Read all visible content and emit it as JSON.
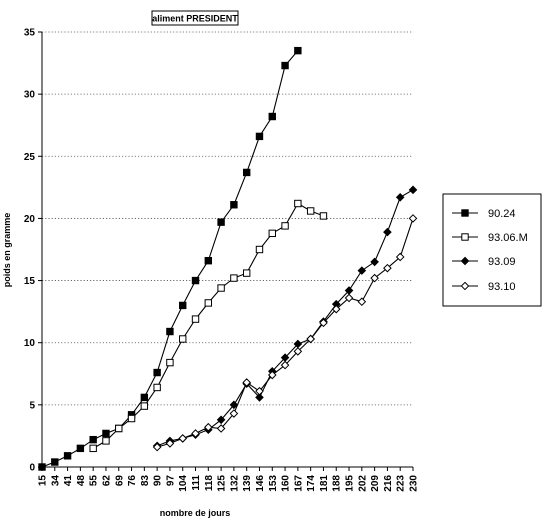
{
  "chart_data": {
    "type": "line",
    "title": "aliment PRESIDENT",
    "xlabel": "nombre de jours",
    "ylabel": "poids en gramme",
    "ylim": [
      0,
      35
    ],
    "yticks": [
      0,
      5,
      10,
      15,
      20,
      25,
      30,
      35
    ],
    "categories": [
      "15",
      "34",
      "41",
      "48",
      "55",
      "62",
      "69",
      "76",
      "83",
      "90",
      "97",
      "104",
      "111",
      "118",
      "125",
      "132",
      "139",
      "146",
      "153",
      "160",
      "167",
      "174",
      "181",
      "188",
      "195",
      "202",
      "209",
      "216",
      "223",
      "230"
    ],
    "grid": "horizontal dotted",
    "legend_position": "right",
    "series": [
      {
        "name": "90.24",
        "marker": "filled-square",
        "points": [
          {
            "x": 15,
            "y": 0.0
          },
          {
            "x": 34,
            "y": 0.4
          },
          {
            "x": 41,
            "y": 0.9
          },
          {
            "x": 48,
            "y": 1.5
          },
          {
            "x": 55,
            "y": 2.2
          },
          {
            "x": 62,
            "y": 2.7
          },
          {
            "x": 69,
            "y": 3.1
          },
          {
            "x": 76,
            "y": 4.2
          },
          {
            "x": 83,
            "y": 5.6
          },
          {
            "x": 90,
            "y": 7.6
          },
          {
            "x": 97,
            "y": 10.9
          },
          {
            "x": 104,
            "y": 13.0
          },
          {
            "x": 111,
            "y": 15.0
          },
          {
            "x": 118,
            "y": 16.6
          },
          {
            "x": 125,
            "y": 19.7
          },
          {
            "x": 132,
            "y": 21.1
          },
          {
            "x": 139,
            "y": 23.7
          },
          {
            "x": 146,
            "y": 26.6
          },
          {
            "x": 153,
            "y": 28.2
          },
          {
            "x": 160,
            "y": 32.3
          },
          {
            "x": 167,
            "y": 33.5
          }
        ]
      },
      {
        "name": "93.06.M",
        "marker": "open-square",
        "points": [
          {
            "x": 55,
            "y": 1.5
          },
          {
            "x": 62,
            "y": 2.1
          },
          {
            "x": 69,
            "y": 3.1
          },
          {
            "x": 76,
            "y": 3.9
          },
          {
            "x": 83,
            "y": 4.9
          },
          {
            "x": 90,
            "y": 6.4
          },
          {
            "x": 97,
            "y": 8.4
          },
          {
            "x": 104,
            "y": 10.3
          },
          {
            "x": 111,
            "y": 11.9
          },
          {
            "x": 118,
            "y": 13.2
          },
          {
            "x": 125,
            "y": 14.4
          },
          {
            "x": 132,
            "y": 15.2
          },
          {
            "x": 139,
            "y": 15.6
          },
          {
            "x": 146,
            "y": 17.5
          },
          {
            "x": 153,
            "y": 18.8
          },
          {
            "x": 160,
            "y": 19.4
          },
          {
            "x": 167,
            "y": 21.2
          },
          {
            "x": 174,
            "y": 20.6
          },
          {
            "x": 181,
            "y": 20.2
          }
        ]
      },
      {
        "name": "93.09",
        "marker": "filled-diamond",
        "points": [
          {
            "x": 90,
            "y": 1.7
          },
          {
            "x": 97,
            "y": 2.1
          },
          {
            "x": 104,
            "y": 2.3
          },
          {
            "x": 111,
            "y": 2.6
          },
          {
            "x": 118,
            "y": 3.0
          },
          {
            "x": 125,
            "y": 3.8
          },
          {
            "x": 132,
            "y": 5.0
          },
          {
            "x": 139,
            "y": 6.7
          },
          {
            "x": 146,
            "y": 5.6
          },
          {
            "x": 153,
            "y": 7.7
          },
          {
            "x": 160,
            "y": 8.8
          },
          {
            "x": 167,
            "y": 9.9
          },
          {
            "x": 174,
            "y": 10.3
          },
          {
            "x": 181,
            "y": 11.7
          },
          {
            "x": 188,
            "y": 13.1
          },
          {
            "x": 195,
            "y": 14.2
          },
          {
            "x": 202,
            "y": 15.8
          },
          {
            "x": 209,
            "y": 16.5
          },
          {
            "x": 216,
            "y": 18.9
          },
          {
            "x": 223,
            "y": 21.7
          },
          {
            "x": 230,
            "y": 22.3
          }
        ]
      },
      {
        "name": "93.10",
        "marker": "open-diamond",
        "points": [
          {
            "x": 90,
            "y": 1.6
          },
          {
            "x": 97,
            "y": 1.9
          },
          {
            "x": 104,
            "y": 2.3
          },
          {
            "x": 111,
            "y": 2.7
          },
          {
            "x": 118,
            "y": 3.2
          },
          {
            "x": 125,
            "y": 3.1
          },
          {
            "x": 132,
            "y": 4.3
          },
          {
            "x": 139,
            "y": 6.8
          },
          {
            "x": 146,
            "y": 6.1
          },
          {
            "x": 153,
            "y": 7.4
          },
          {
            "x": 160,
            "y": 8.2
          },
          {
            "x": 167,
            "y": 9.3
          },
          {
            "x": 174,
            "y": 10.3
          },
          {
            "x": 181,
            "y": 11.6
          },
          {
            "x": 188,
            "y": 12.7
          },
          {
            "x": 195,
            "y": 13.6
          },
          {
            "x": 202,
            "y": 13.3
          },
          {
            "x": 209,
            "y": 15.2
          },
          {
            "x": 216,
            "y": 16.0
          },
          {
            "x": 223,
            "y": 16.9
          },
          {
            "x": 230,
            "y": 20.0
          }
        ]
      }
    ]
  }
}
